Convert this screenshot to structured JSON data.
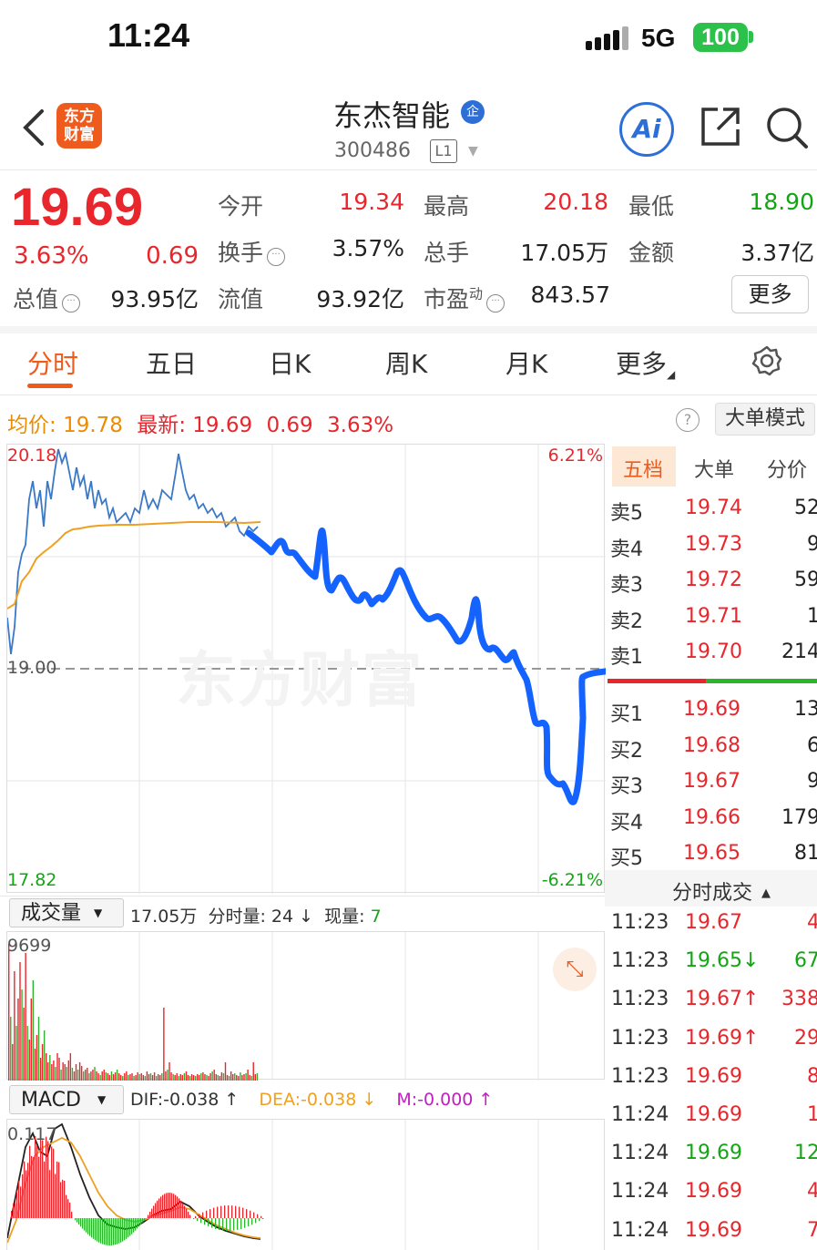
{
  "status_bar": {
    "time": "11:24",
    "network": "5G",
    "battery": "100"
  },
  "header": {
    "back_icon": "chevron-left-icon",
    "logo_text": "东方财富",
    "name": "东杰智能",
    "badge": "企",
    "code": "300486",
    "level": "L1",
    "icons": [
      "ai-icon",
      "share-icon",
      "search-icon"
    ],
    "ai_label": "Ai"
  },
  "quote": {
    "price": "19.69",
    "pct": "3.63%",
    "change": "0.69",
    "open_label": "今开",
    "open": "19.34",
    "high_label": "最高",
    "high": "20.18",
    "low_label": "最低",
    "low": "18.90",
    "turnover_label": "换手",
    "turnover": "3.57%",
    "volume_label": "总手",
    "volume": "17.05万",
    "amount_label": "金额",
    "amount": "3.37亿",
    "mktcap_label": "总值",
    "mktcap": "93.95亿",
    "float_label": "流值",
    "float": "93.92亿",
    "pe_label": "市盈",
    "pe_sup": "动",
    "pe": "843.57",
    "more_label": "更多"
  },
  "tabs": [
    {
      "label": "分时",
      "active": true
    },
    {
      "label": "五日"
    },
    {
      "label": "日K"
    },
    {
      "label": "周K"
    },
    {
      "label": "月K"
    },
    {
      "label": "更多"
    }
  ],
  "info_line": {
    "avg_label": "均价:",
    "avg": "19.78",
    "latest_label": "最新:",
    "latest": "19.69",
    "chg": "0.69",
    "pct": "3.63%",
    "bigorder_btn": "大单模式"
  },
  "watermark": "东方财富",
  "chart_axes": {
    "y_top": "20.18",
    "y_mid": "19.00",
    "y_bottom": "17.82",
    "pct_top": "6.21%",
    "pct_bottom": "-6.21%"
  },
  "order_book": {
    "tabs": [
      "五档",
      "大单",
      "分价"
    ],
    "asks": [
      {
        "label": "卖5",
        "price": "19.74",
        "vol": "52"
      },
      {
        "label": "卖4",
        "price": "19.73",
        "vol": "9"
      },
      {
        "label": "卖3",
        "price": "19.72",
        "vol": "59"
      },
      {
        "label": "卖2",
        "price": "19.71",
        "vol": "1"
      },
      {
        "label": "卖1",
        "price": "19.70",
        "vol": "214"
      }
    ],
    "bids": [
      {
        "label": "买1",
        "price": "19.69",
        "vol": "13"
      },
      {
        "label": "买2",
        "price": "19.68",
        "vol": "6"
      },
      {
        "label": "买3",
        "price": "19.67",
        "vol": "9"
      },
      {
        "label": "买4",
        "price": "19.66",
        "vol": "179"
      },
      {
        "label": "买5",
        "price": "19.65",
        "vol": "81"
      }
    ]
  },
  "trades": {
    "title": "分时成交",
    "rows": [
      {
        "time": "11:23",
        "price": "19.67",
        "vol": "4",
        "color": "red"
      },
      {
        "time": "11:23",
        "price": "19.65↓",
        "vol": "67",
        "color": "green"
      },
      {
        "time": "11:23",
        "price": "19.67↑",
        "vol": "338",
        "color": "red"
      },
      {
        "time": "11:23",
        "price": "19.69↑",
        "vol": "29",
        "color": "red"
      },
      {
        "time": "11:23",
        "price": "19.69",
        "vol": "8",
        "color": "red"
      },
      {
        "time": "11:24",
        "price": "19.69",
        "vol": "1",
        "color": "red"
      },
      {
        "time": "11:24",
        "price": "19.69",
        "vol": "12",
        "color": "green"
      },
      {
        "time": "11:24",
        "price": "19.69",
        "vol": "4",
        "color": "red"
      },
      {
        "time": "11:24",
        "price": "19.69",
        "vol": "7",
        "color": "red"
      }
    ]
  },
  "volume_panel": {
    "selector": "成交量",
    "total": "17.05万",
    "minute_label": "分时量:",
    "minute_vol": "24",
    "minute_arrow": "↓",
    "now_label": "现量:",
    "now_vol": "7",
    "y_max": "9699"
  },
  "macd_panel": {
    "selector": "MACD",
    "dif": "DIF:-0.038 ↑",
    "dea": "DEA:-0.038 ↓",
    "m": "M:-0.000 ↑",
    "y_top": "0.117"
  },
  "colors": {
    "up": "#e8262c",
    "down": "#14a514",
    "accent": "#ee5b1c",
    "price_line": "#3a78c8",
    "avg_line": "#f0a020",
    "drawn_line": "#1463ff",
    "dea": "#f0a020",
    "m": "#c020c0"
  }
}
